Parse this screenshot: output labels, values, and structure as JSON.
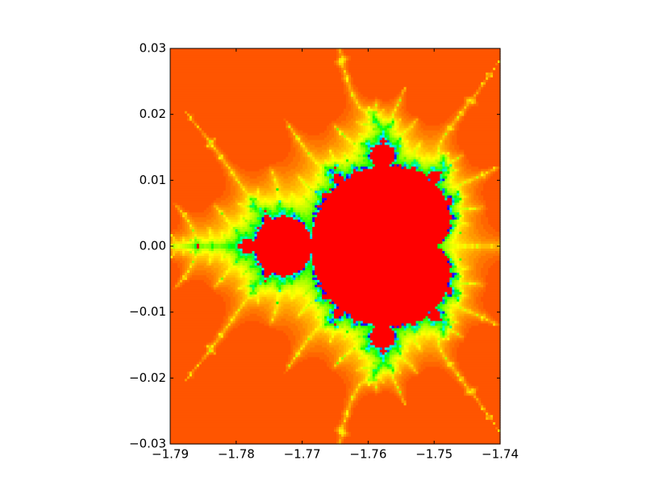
{
  "chart_data": {
    "type": "image",
    "xlim": [
      -1.79,
      -1.74
    ],
    "ylim": [
      -0.03,
      0.03
    ],
    "xticks": [
      {
        "value": -1.79,
        "label": "−1.79"
      },
      {
        "value": -1.78,
        "label": "−1.78"
      },
      {
        "value": -1.77,
        "label": "−1.77"
      },
      {
        "value": -1.76,
        "label": "−1.76"
      },
      {
        "value": -1.75,
        "label": "−1.75"
      },
      {
        "value": -1.74,
        "label": "−1.74"
      }
    ],
    "yticks": [
      {
        "value": -0.03,
        "label": "−0.03"
      },
      {
        "value": -0.02,
        "label": "−0.02"
      },
      {
        "value": -0.01,
        "label": "−0.01"
      },
      {
        "value": 0,
        "label": "0.00"
      },
      0.01,
      0.02,
      0.03
    ]
  }
}
